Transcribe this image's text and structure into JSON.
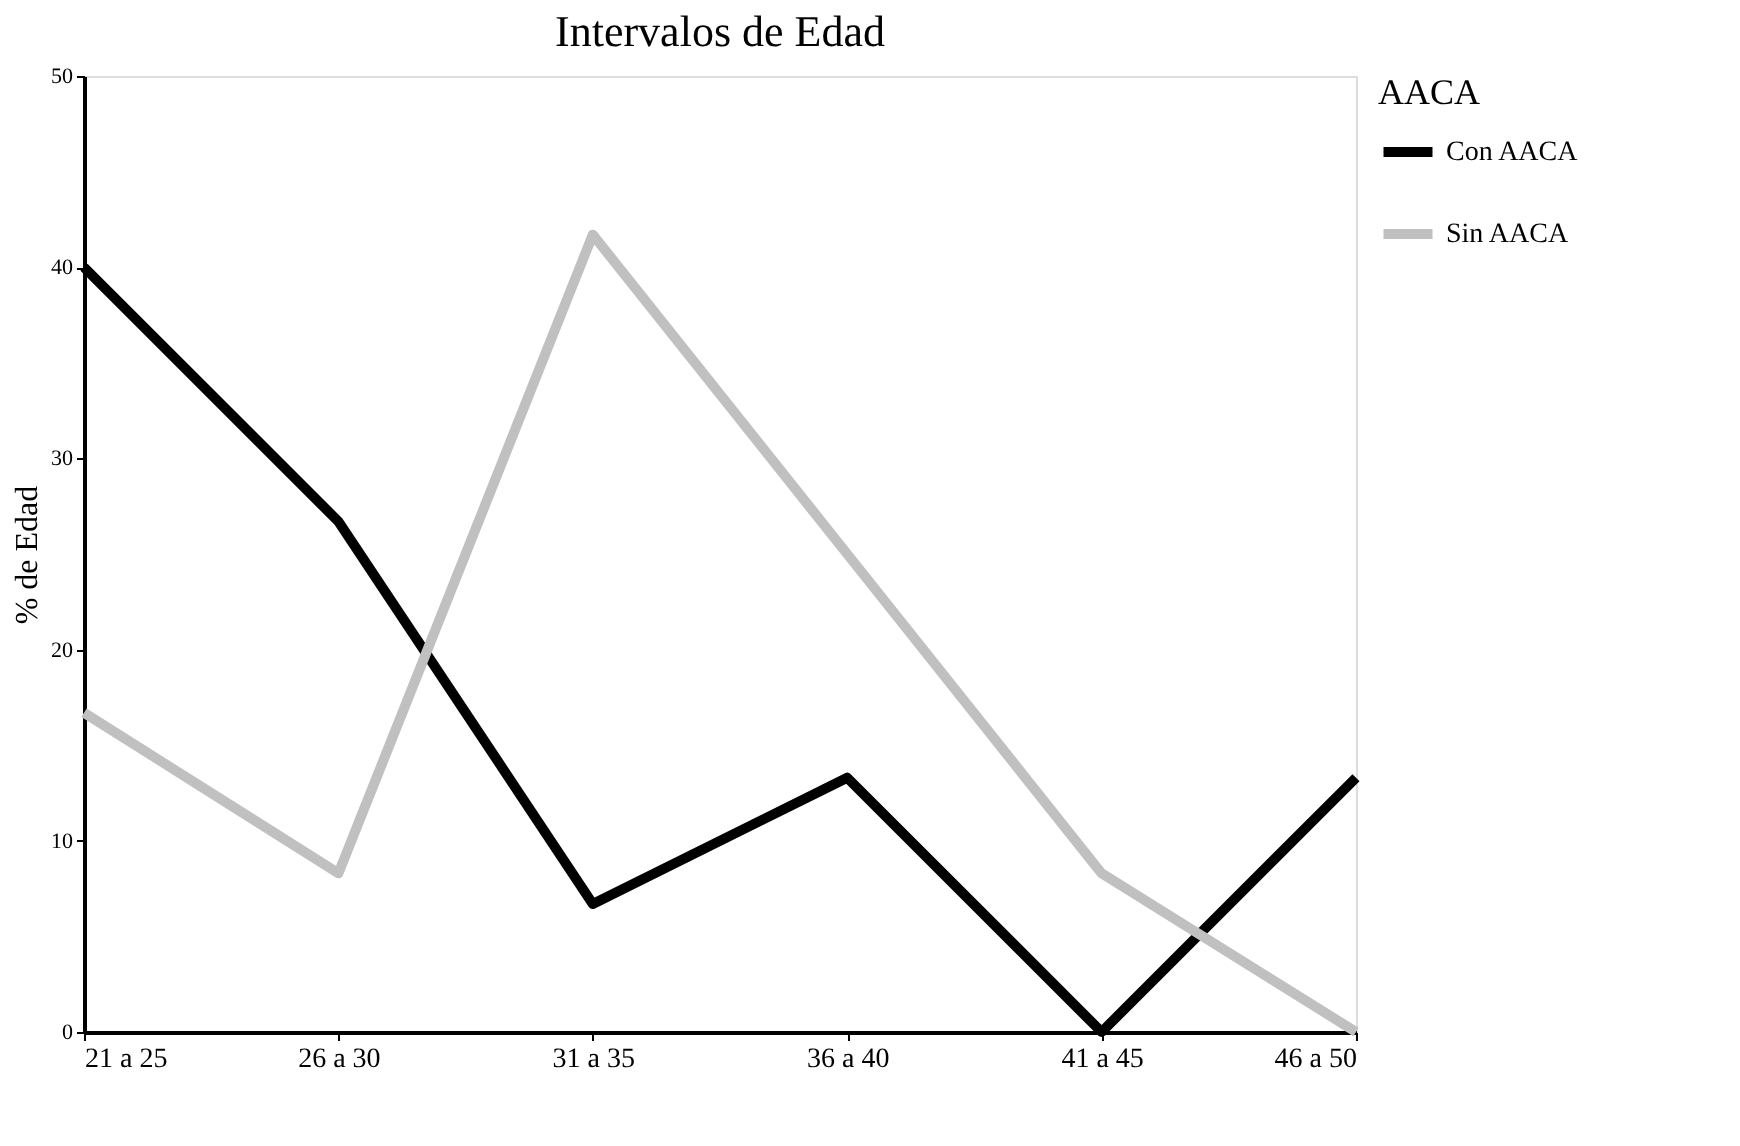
{
  "chart_data": {
    "type": "line",
    "title": "Intervalos de Edad",
    "ylabel": "% de Edad",
    "legend_title": "AACA",
    "categories": [
      "21 a 25",
      "26 a 30",
      "31 a 35",
      "36 a 40",
      "41 a 45",
      "46 a 50"
    ],
    "series": [
      {
        "name": "Con AACA",
        "color": "#000000",
        "values": [
          40,
          26.7,
          6.7,
          13.3,
          0,
          13.3
        ]
      },
      {
        "name": "Sin AACA",
        "color": "#c0c0c0",
        "values": [
          16.7,
          8.3,
          41.7,
          25,
          8.3,
          0
        ]
      }
    ],
    "ylim": [
      0,
      50
    ],
    "yticks": [
      0,
      10,
      20,
      30,
      40,
      50
    ],
    "grid": false,
    "legend": "right",
    "marker": "none",
    "line_style": "solid"
  }
}
